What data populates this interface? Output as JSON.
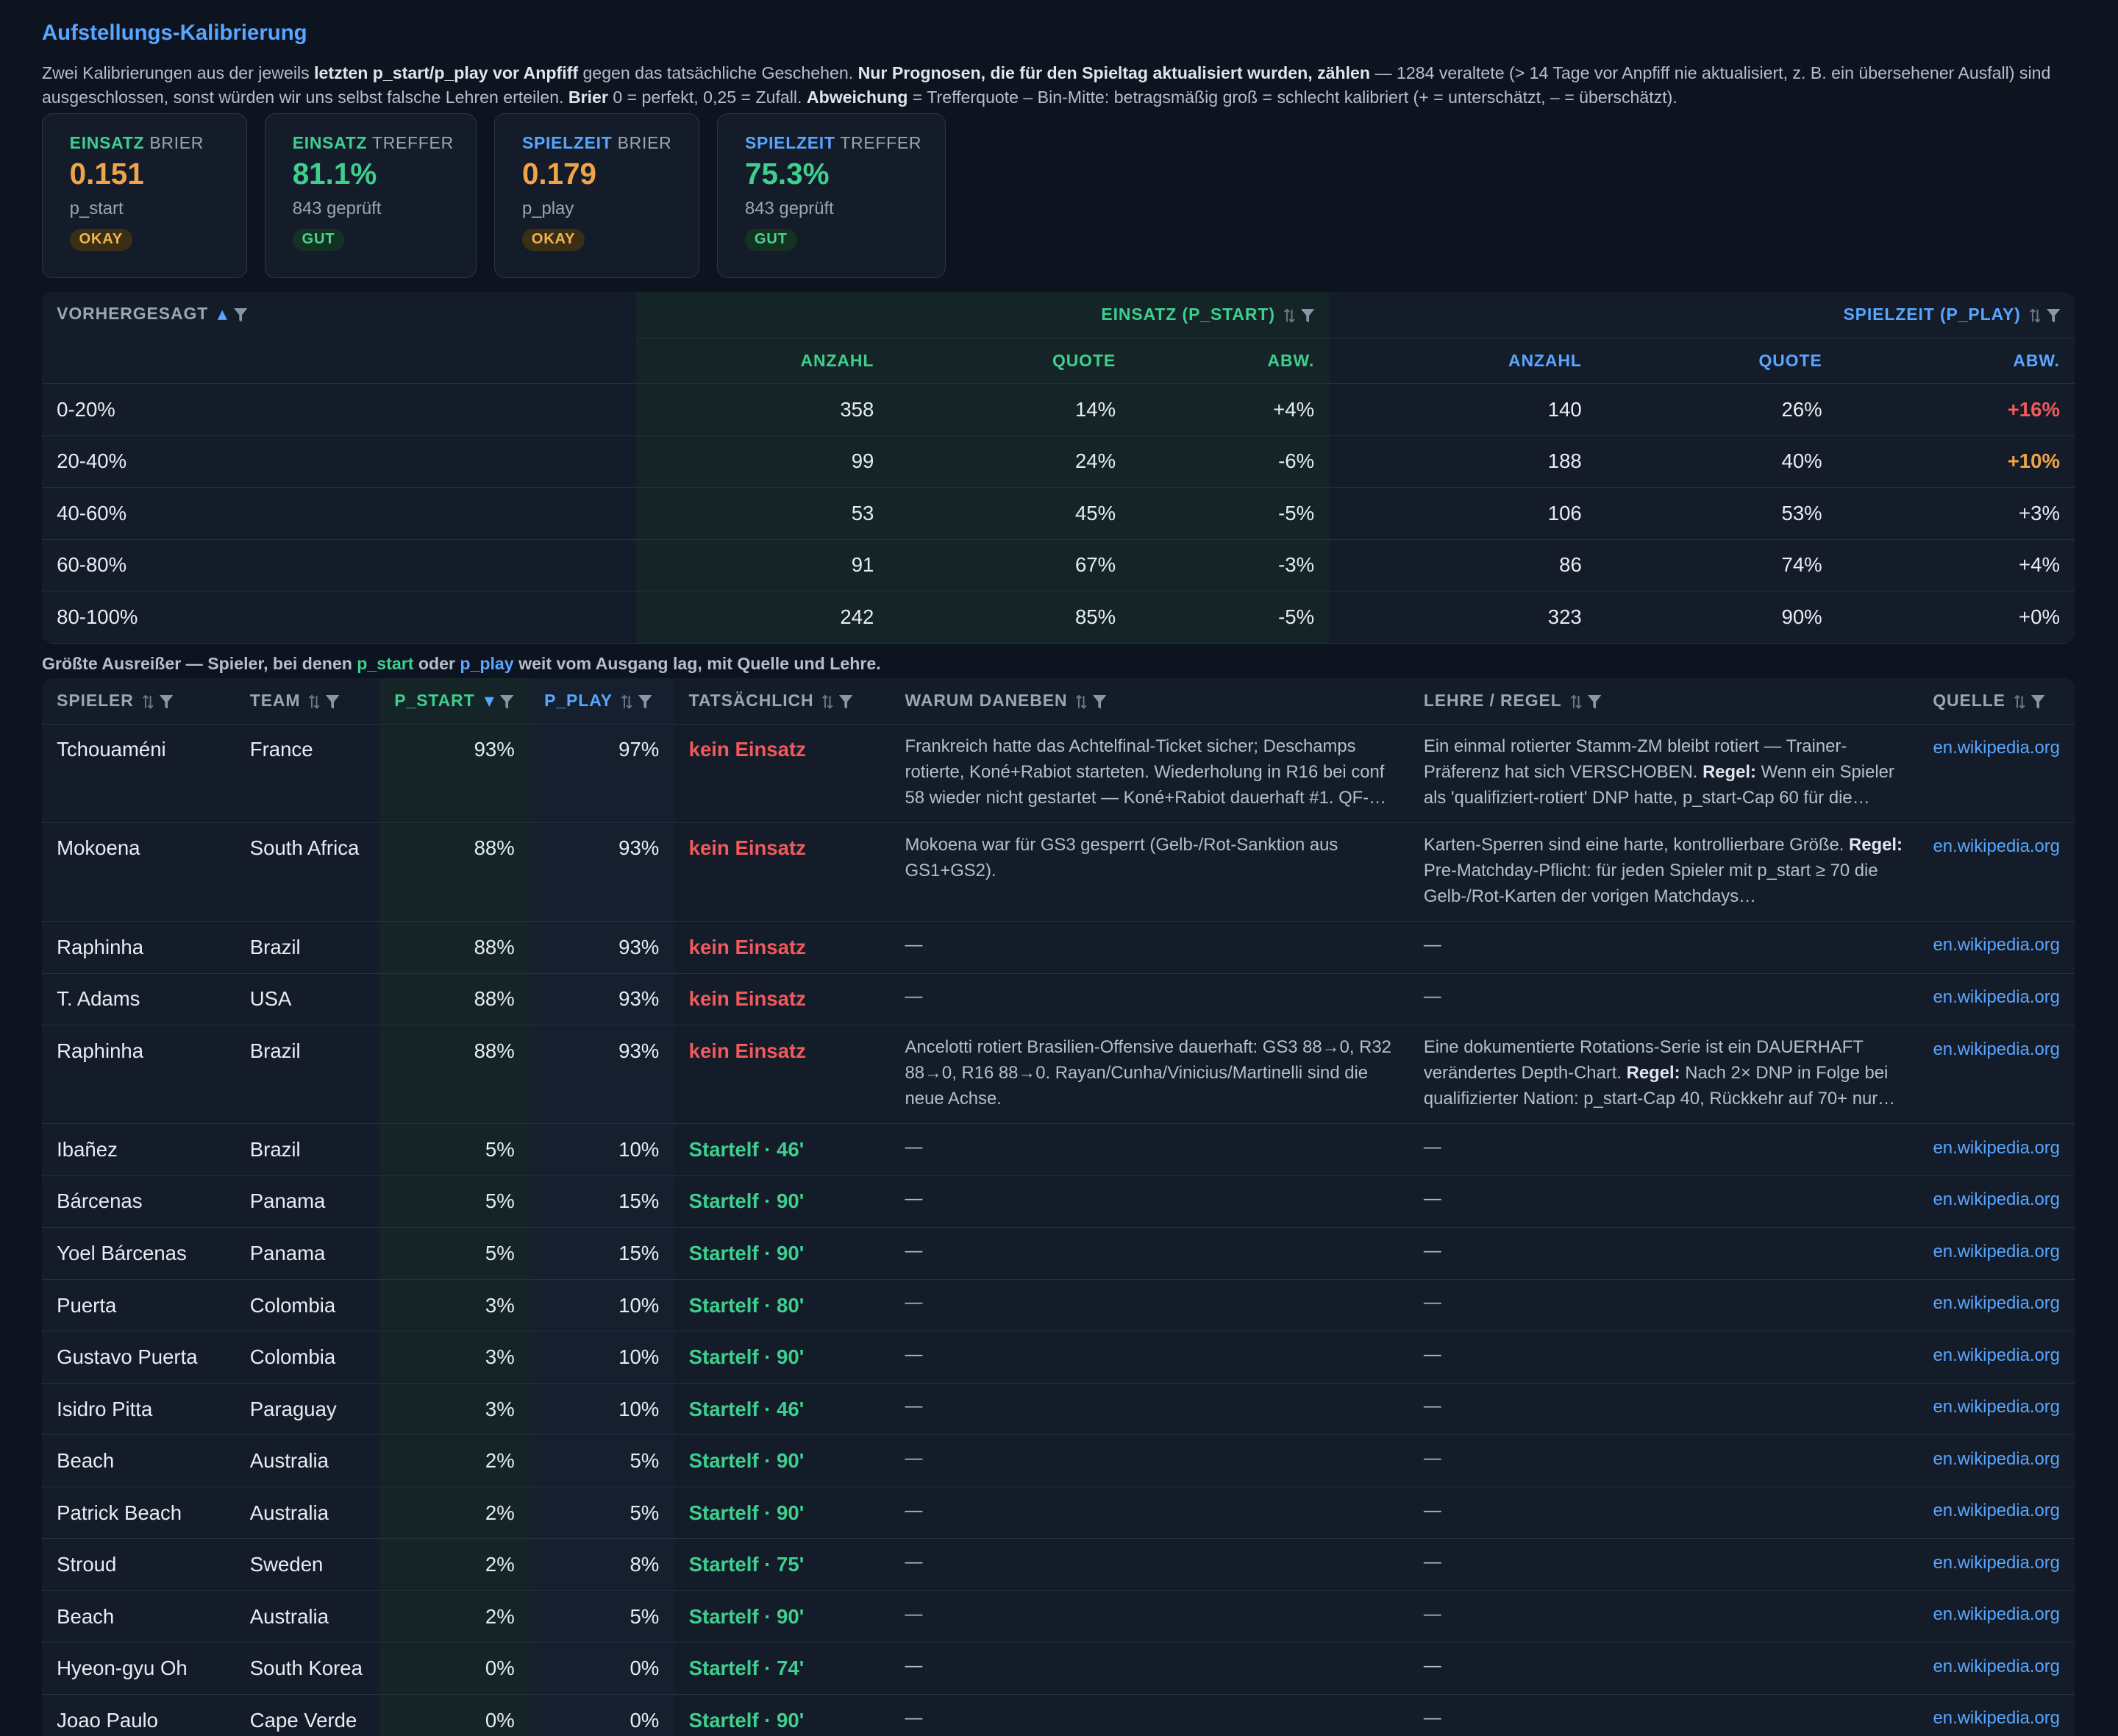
{
  "header": {
    "title": "Aufstellungs-Kalibrierung",
    "intro": [
      {
        "t": "Zwei Kalibrierungen aus der jeweils "
      },
      {
        "t": "letzten p_start/p_play vor Anpfiff",
        "b": true
      },
      {
        "t": " gegen das tatsächliche Geschehen. "
      },
      {
        "t": "Nur Prognosen, die für den Spieltag aktualisiert wurden, zählen",
        "b": true
      },
      {
        "t": " — 1284 veraltete (> 14 Tage vor Anpfiff nie aktualisiert, z. B. ein übersehener Ausfall) sind ausgeschlossen, sonst würden wir uns selbst falsche Lehren erteilen. "
      },
      {
        "t": "Brier",
        "b": true
      },
      {
        "t": " 0 = perfekt, 0,25 = Zufall. "
      },
      {
        "t": "Abweichung",
        "b": true
      },
      {
        "t": " = Trefferquote – Bin-Mitte: betragsmäßig groß = schlecht kalibriert (+ = unterschätzt, – = überschätzt)."
      }
    ]
  },
  "cards": [
    {
      "label": "EINSATZ",
      "label_rest": "BRIER",
      "value": "0.151",
      "sub": "p_start",
      "badge": "OKAY",
      "label_color": "#3ecf8e",
      "value_color": "#f0a448",
      "badge_tone": "okay"
    },
    {
      "label": "EINSATZ",
      "label_rest": "TREFFER",
      "value": "81.1%",
      "sub": "843 geprüft",
      "badge": "GUT",
      "label_color": "#3ecf8e",
      "value_color": "#3ecf8e",
      "badge_tone": "gut"
    },
    {
      "label": "SPIELZEIT",
      "label_rest": "BRIER",
      "value": "0.179",
      "sub": "p_play",
      "badge": "OKAY",
      "label_color": "#58a6ff",
      "value_color": "#f0a448",
      "badge_tone": "okay"
    },
    {
      "label": "SPIELZEIT",
      "label_rest": "TREFFER",
      "value": "75.3%",
      "sub": "843 geprüft",
      "badge": "GUT",
      "label_color": "#58a6ff",
      "value_color": "#3ecf8e",
      "badge_tone": "gut"
    }
  ],
  "calibration": {
    "head": "VORHERGESAGT",
    "group_start": "EINSATZ (P_START)",
    "group_play": "SPIELZEIT (P_PLAY)",
    "sub_start": [
      "ANZAHL",
      "QUOTE",
      "ABW."
    ],
    "sub_play": [
      "ANZAHL",
      "QUOTE",
      "ABW."
    ],
    "rows": [
      [
        "0-20%",
        "358",
        "14%",
        "+4%",
        "140",
        "26%",
        "+16%"
      ],
      [
        "20-40%",
        "99",
        "24%",
        "-6%",
        "188",
        "40%",
        "+10%"
      ],
      [
        "40-60%",
        "53",
        "45%",
        "-5%",
        "106",
        "53%",
        "+3%"
      ],
      [
        "60-80%",
        "91",
        "67%",
        "-3%",
        "86",
        "74%",
        "+4%"
      ],
      [
        "80-100%",
        "242",
        "85%",
        "-5%",
        "323",
        "90%",
        "+0%"
      ]
    ]
  },
  "outliers": {
    "caption": [
      {
        "t": "Größte Ausreißer — Spieler, bei denen "
      },
      {
        "t": "p_start",
        "color": "#3ecf8e"
      },
      {
        "t": " oder "
      },
      {
        "t": "p_play",
        "color": "#58a6ff"
      },
      {
        "t": " weit vom Ausgang lag, mit Quelle und Lehre."
      }
    ],
    "columns": [
      "SPIELER",
      "TEAM",
      "P_START",
      "P_PLAY",
      "TATSÄCHLICH",
      "WARUM DANEBEN",
      "LEHRE / REGEL",
      "QUELLE"
    ],
    "rows": [
      {
        "player": "Tchouaméni",
        "team": "France",
        "p_start": "93%",
        "p_play": "97%",
        "actual": "kein Einsatz",
        "why": [
          {
            "t": "Frankreich hatte das Achtelfinal-Ticket sicher; Deschamps rotierte, Koné+Rabiot starteten. Wiederholung in R16 bei conf 58 wieder nicht gestartet — Koné+Rabiot dauerhaft #1. QF-…"
          }
        ],
        "lesson": [
          {
            "t": "Ein einmal rotierter Stamm-ZM bleibt rotiert — Trainer-Präferenz hat sich VERSCHOBEN. "
          },
          {
            "t": "Regel:",
            "b": true
          },
          {
            "t": " Wenn ein Spieler als 'qualifiziert-rotiert' DNP hatte, p_start-Cap 60 für die…"
          }
        ],
        "source": "en.wikipedia.org"
      },
      {
        "player": "Mokoena",
        "team": "South Africa",
        "p_start": "88%",
        "p_play": "93%",
        "actual": "kein Einsatz",
        "why": [
          {
            "t": "Mokoena war für GS3 gesperrt (Gelb-/Rot-Sanktion aus GS1+GS2)."
          }
        ],
        "lesson": [
          {
            "t": "Karten-Sperren sind eine harte, kontrollierbare Größe. "
          },
          {
            "t": "Regel:",
            "b": true
          },
          {
            "t": " Pre-Matchday-Pflicht: für jeden Spieler mit p_start ≥ 70 die Gelb-/Rot-Karten der vorigen Matchdays…"
          }
        ],
        "source": "en.wikipedia.org"
      },
      {
        "player": "Raphinha",
        "team": "Brazil",
        "p_start": "88%",
        "p_play": "93%",
        "actual": "kein Einsatz",
        "why": [
          {
            "t": "—"
          }
        ],
        "lesson": [
          {
            "t": "—"
          }
        ],
        "source": "en.wikipedia.org"
      },
      {
        "player": "T. Adams",
        "team": "USA",
        "p_start": "88%",
        "p_play": "93%",
        "actual": "kein Einsatz",
        "why": [
          {
            "t": "—"
          }
        ],
        "lesson": [
          {
            "t": "—"
          }
        ],
        "source": "en.wikipedia.org"
      },
      {
        "player": "Raphinha",
        "team": "Brazil",
        "p_start": "88%",
        "p_play": "93%",
        "actual": "kein Einsatz",
        "why": [
          {
            "t": "Ancelotti rotiert Brasilien-Offensive dauerhaft: GS3 88→0, R32 88→0, R16 88→0. Rayan/Cunha/Vinicius/Martinelli sind die neue Achse."
          }
        ],
        "lesson": [
          {
            "t": "Eine dokumentierte Rotations-Serie ist ein DAUERHAFT verändertes Depth-Chart. "
          },
          {
            "t": "Regel:",
            "b": true
          },
          {
            "t": " Nach 2× DNP in Folge bei qualifizierter Nation: p_start-Cap 40, Rückkehr auf 70+ nur…"
          }
        ],
        "source": "en.wikipedia.org"
      },
      {
        "player": "Ibañez",
        "team": "Brazil",
        "p_start": "5%",
        "p_play": "10%",
        "actual": "Startelf · 46'",
        "why": [
          {
            "t": "—"
          }
        ],
        "lesson": [
          {
            "t": "—"
          }
        ],
        "source": "en.wikipedia.org"
      },
      {
        "player": "Bárcenas",
        "team": "Panama",
        "p_start": "5%",
        "p_play": "15%",
        "actual": "Startelf · 90'",
        "why": [
          {
            "t": "—"
          }
        ],
        "lesson": [
          {
            "t": "—"
          }
        ],
        "source": "en.wikipedia.org"
      },
      {
        "player": "Yoel Bárcenas",
        "team": "Panama",
        "p_start": "5%",
        "p_play": "15%",
        "actual": "Startelf · 90'",
        "why": [
          {
            "t": "—"
          }
        ],
        "lesson": [
          {
            "t": "—"
          }
        ],
        "source": "en.wikipedia.org"
      },
      {
        "player": "Puerta",
        "team": "Colombia",
        "p_start": "3%",
        "p_play": "10%",
        "actual": "Startelf · 80'",
        "why": [
          {
            "t": "—"
          }
        ],
        "lesson": [
          {
            "t": "—"
          }
        ],
        "source": "en.wikipedia.org"
      },
      {
        "player": "Gustavo Puerta",
        "team": "Colombia",
        "p_start": "3%",
        "p_play": "10%",
        "actual": "Startelf · 90'",
        "why": [
          {
            "t": "—"
          }
        ],
        "lesson": [
          {
            "t": "—"
          }
        ],
        "source": "en.wikipedia.org"
      },
      {
        "player": "Isidro Pitta",
        "team": "Paraguay",
        "p_start": "3%",
        "p_play": "10%",
        "actual": "Startelf · 46'",
        "why": [
          {
            "t": "—"
          }
        ],
        "lesson": [
          {
            "t": "—"
          }
        ],
        "source": "en.wikipedia.org"
      },
      {
        "player": "Beach",
        "team": "Australia",
        "p_start": "2%",
        "p_play": "5%",
        "actual": "Startelf · 90'",
        "why": [
          {
            "t": "—"
          }
        ],
        "lesson": [
          {
            "t": "—"
          }
        ],
        "source": "en.wikipedia.org"
      },
      {
        "player": "Patrick Beach",
        "team": "Australia",
        "p_start": "2%",
        "p_play": "5%",
        "actual": "Startelf · 90'",
        "why": [
          {
            "t": "—"
          }
        ],
        "lesson": [
          {
            "t": "—"
          }
        ],
        "source": "en.wikipedia.org"
      },
      {
        "player": "Stroud",
        "team": "Sweden",
        "p_start": "2%",
        "p_play": "8%",
        "actual": "Startelf · 75'",
        "why": [
          {
            "t": "—"
          }
        ],
        "lesson": [
          {
            "t": "—"
          }
        ],
        "source": "en.wikipedia.org"
      },
      {
        "player": "Beach",
        "team": "Australia",
        "p_start": "2%",
        "p_play": "5%",
        "actual": "Startelf · 90'",
        "why": [
          {
            "t": "—"
          }
        ],
        "lesson": [
          {
            "t": "—"
          }
        ],
        "source": "en.wikipedia.org"
      },
      {
        "player": "Hyeon-gyu Oh",
        "team": "South Korea",
        "p_start": "0%",
        "p_play": "0%",
        "actual": "Startelf · 74'",
        "why": [
          {
            "t": "—"
          }
        ],
        "lesson": [
          {
            "t": "—"
          }
        ],
        "source": "en.wikipedia.org"
      },
      {
        "player": "Joao Paulo",
        "team": "Cape Verde",
        "p_start": "0%",
        "p_play": "0%",
        "actual": "Startelf · 90'",
        "why": [
          {
            "t": "—"
          }
        ],
        "lesson": [
          {
            "t": "—"
          }
        ],
        "source": "en.wikipedia.org"
      }
    ]
  }
}
